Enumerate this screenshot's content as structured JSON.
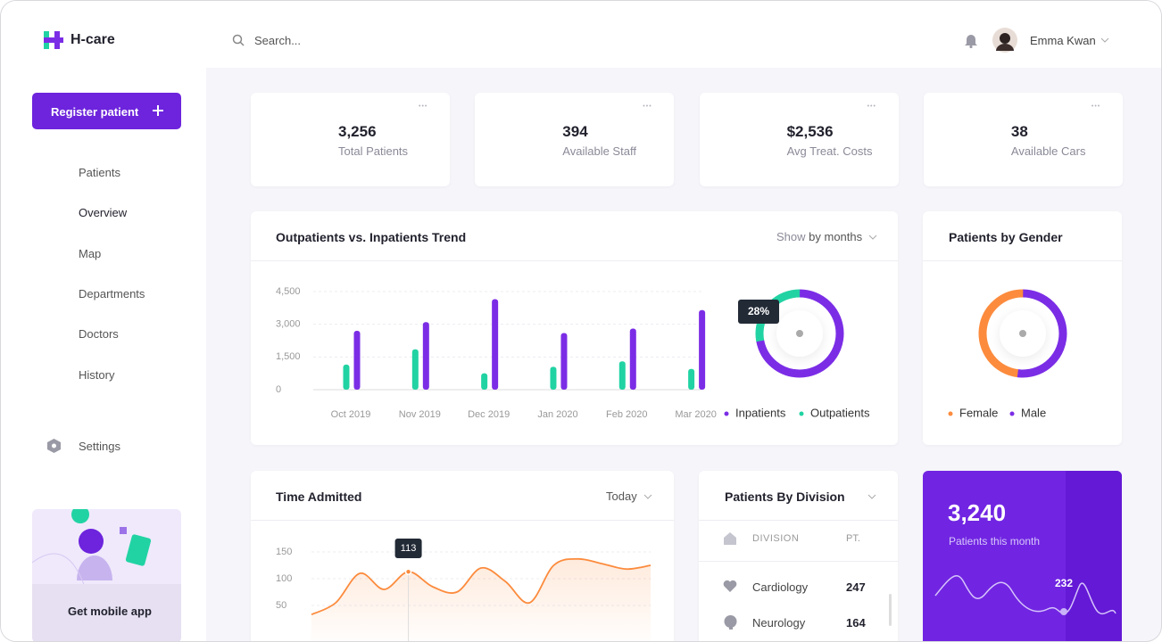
{
  "brand": "H-care",
  "search_placeholder": "Search...",
  "user": "Emma Kwan",
  "sidebar": {
    "register_button": "Register patient",
    "nav": [
      "Patients",
      "Overview",
      "Map",
      "Departments",
      "Doctors",
      "History"
    ],
    "settings": "Settings",
    "promo": "Get mobile app"
  },
  "stats": [
    {
      "value": "3,256",
      "label": "Total Patients"
    },
    {
      "value": "394",
      "label": "Available Staff"
    },
    {
      "value": "$2,536",
      "label": "Avg Treat. Costs"
    },
    {
      "value": "38",
      "label": "Available Cars"
    }
  ],
  "chart_data": [
    {
      "type": "bar",
      "title": "Outpatients vs. Inpatients Trend",
      "filter_prefix": "Show",
      "filter_value": "by months",
      "categories": [
        "Oct 2019",
        "Nov 2019",
        "Dec 2019",
        "Jan 2020",
        "Feb 2020",
        "Mar 2020"
      ],
      "series": [
        {
          "name": "Inpatients",
          "color": "#7b2de6",
          "values": [
            2700,
            3100,
            4150,
            2600,
            2800,
            3650
          ]
        },
        {
          "name": "Outpatients",
          "color": "#21d3a3",
          "values": [
            1150,
            1850,
            750,
            1050,
            1300,
            950
          ]
        }
      ],
      "ylim": [
        0,
        4500
      ],
      "yticks": [
        0,
        {
          "value": 1500,
          "label": "1,500"
        },
        {
          "value": 3000,
          "label": "3,000"
        },
        {
          "value": 4500,
          "label": "4,500"
        }
      ],
      "grid": true,
      "share_values": [
        72,
        28
      ],
      "share_label": "28%"
    },
    {
      "type": "pie",
      "title": "Patients by Gender",
      "categories": [
        "Female",
        "Male"
      ],
      "values": [
        48,
        52
      ],
      "colors": [
        "#fc8b3d",
        "#7b2de6"
      ]
    },
    {
      "type": "line",
      "title": "Time Admitted",
      "filter": "Today",
      "color": "#fc8b3d",
      "values": [
        33,
        55,
        110,
        80,
        113,
        85,
        75,
        120,
        95,
        55,
        125,
        137,
        128,
        118,
        125
      ],
      "value_labels": [
        null,
        null,
        null,
        null,
        "113",
        null,
        null,
        null,
        null,
        null,
        null,
        null,
        null,
        null,
        null
      ],
      "ylim": [
        0,
        150
      ],
      "yticks": [
        50,
        100,
        150
      ],
      "grid": true
    }
  ],
  "division": {
    "title": "Patients By Division",
    "columns": [
      "DIVISION",
      "PT."
    ],
    "rows": [
      [
        "Cardiology",
        "247"
      ],
      [
        "Neurology",
        "164"
      ]
    ]
  },
  "monthly": {
    "value": "3,240",
    "label": "Patients this month",
    "highlight": "232"
  }
}
